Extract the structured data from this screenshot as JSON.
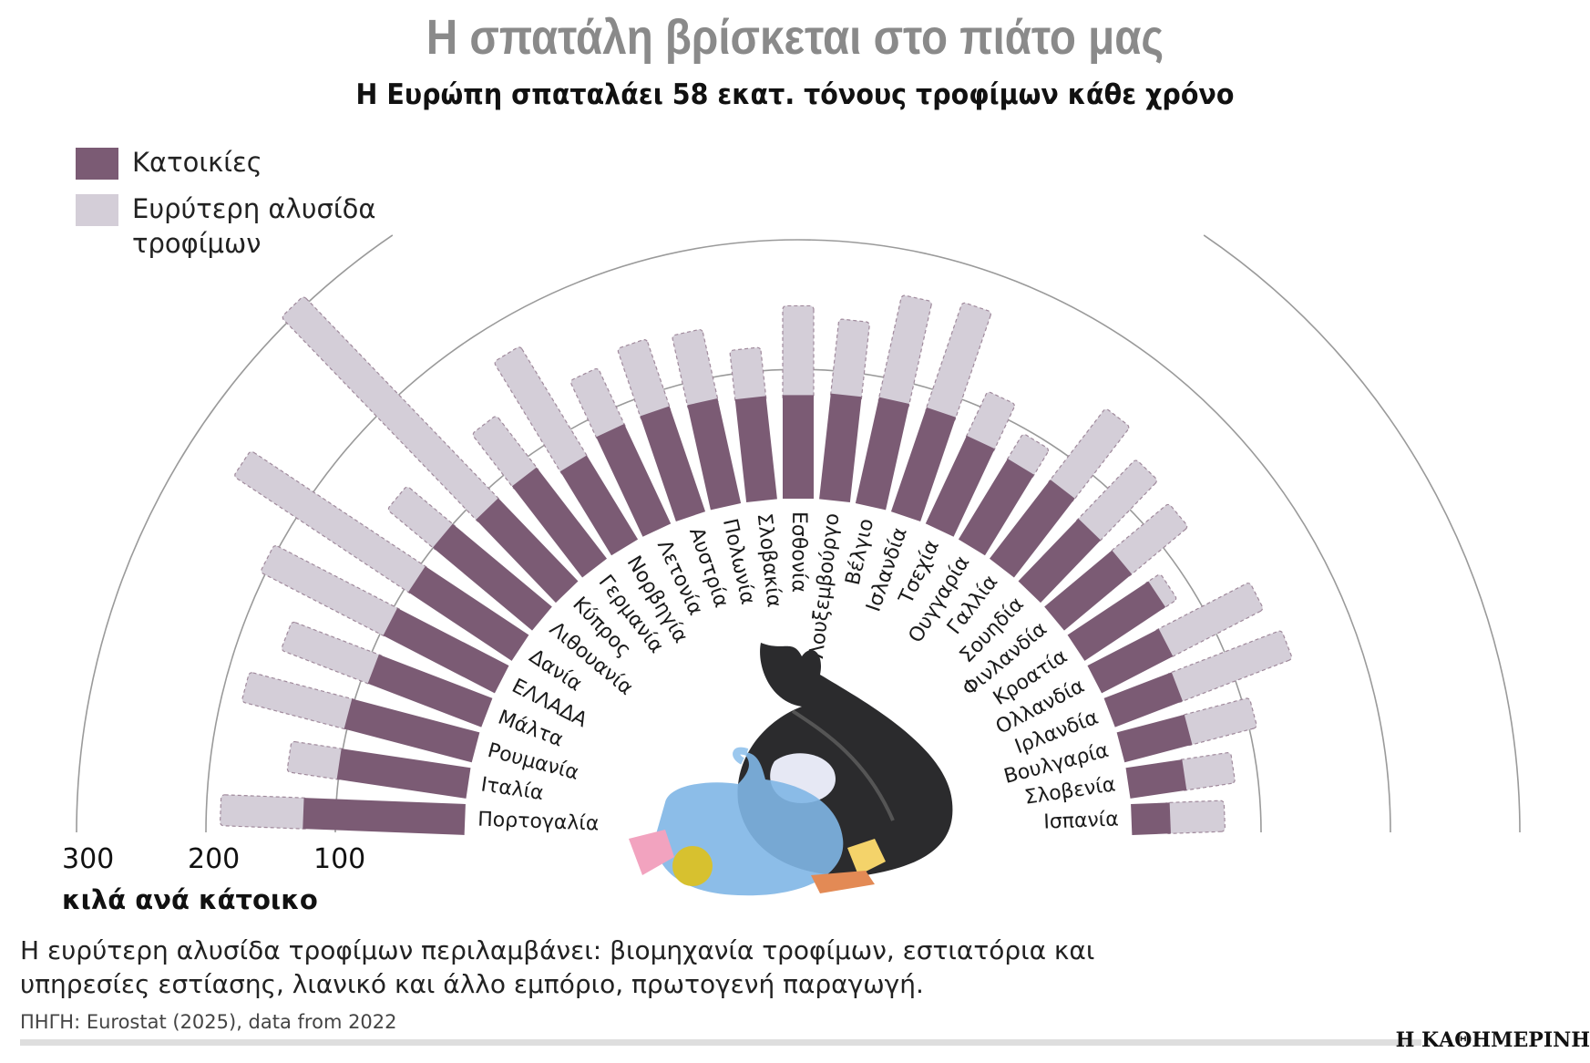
{
  "header": {
    "title": "Η σπατάλη βρίσκεται στο πιάτο μας",
    "subtitle": "Η Ευρώπη σπαταλάει 58 εκατ. τόνους τροφίμων κάθε χρόνο"
  },
  "colors": {
    "households": "#7b5b74",
    "wider_chain": "#d4ced8",
    "grid": "#9a9a9a"
  },
  "chart_data": {
    "type": "bar",
    "layout": "radial semicircle, stacked",
    "unit_label": "κιλά ανά κάτοικο",
    "axis_ticks": [
      "300",
      "200",
      "100"
    ],
    "rlim": [
      0,
      300
    ],
    "grid": true,
    "legend_position": "top-left",
    "categories": [
      "Πορτογαλία",
      "Ιταλία",
      "Ρουμανία",
      "Μάλτα",
      "ΕΛΛΑΔΑ",
      "Δανία",
      "Λιθουανία",
      "Κύπρος",
      "Γερμανία",
      "Νορβηγία",
      "Λετονία",
      "Αυστρία",
      "Πολωνία",
      "Σλοβακία",
      "Εσθονία",
      "Λουξεμβούργο",
      "Βέλγιο",
      "Ισλανδία",
      "Τσεχία",
      "Ουγγαρία",
      "Γαλλία",
      "Σουηδία",
      "Φινλανδία",
      "Κροατία",
      "Ολλανδία",
      "Ιρλανδία",
      "Βουλγαρία",
      "Σλοβενία",
      "Ισπανία"
    ],
    "series": [
      {
        "name": "Κατοικίες",
        "values": [
          125,
          101,
          102,
          94,
          97,
          96,
          100,
          89,
          89,
          76,
          85,
          86,
          83,
          80,
          80,
          82,
          84,
          85,
          75,
          73,
          77,
          67,
          68,
          75,
          62,
          56,
          54,
          44,
          30
        ]
      },
      {
        "name": "Ευρύτερη αλυσίδα τροφίμων",
        "values": [
          64,
          39,
          82,
          72,
          107,
          162,
          46,
          217,
          51,
          99,
          48,
          55,
          55,
          38,
          69,
          58,
          81,
          86,
          38,
          23,
          70,
          64,
          57,
          11,
          79,
          91,
          52,
          38,
          42
        ]
      }
    ]
  },
  "legend": {
    "households": "Κατοικίες",
    "wider_chain": "Ευρύτερη αλυσίδα τροφίμων"
  },
  "footer": {
    "note": "Η ευρύτερη αλυσίδα τροφίμων περιλαμβάνει: βιομηχανία τροφίμων, εστιατόρια και υπηρεσίες εστίασης, λιανικό και άλλο εμπόριο, πρωτογενή παραγωγή.",
    "source": "ΠΗΓΗ: Eurostat (2025), data from 2022",
    "brand": "Η ΚΑΘΗΜΕΡΙΝΗ"
  }
}
